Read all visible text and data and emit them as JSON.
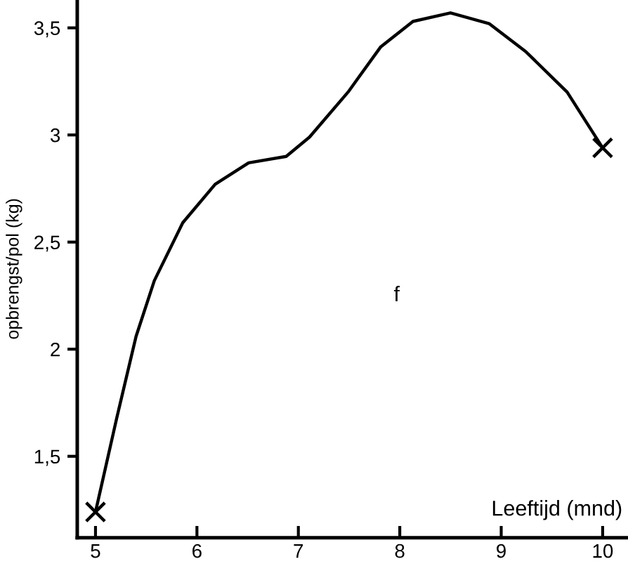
{
  "chart_data": {
    "type": "line",
    "xlabel": "Leeftijd (mnd)",
    "ylabel": "opbrengst/pol (kg)",
    "series": [
      {
        "color": "#000000",
        "marker": "none",
        "x": [
          5,
          5.21,
          5.4,
          5.58,
          5.86,
          6.18,
          6.51,
          6.88,
          7.11,
          7.49,
          7.81,
          8.13,
          8.5,
          8.88,
          9.24,
          9.65,
          10
        ],
        "values": [
          1.24,
          1.68,
          2.06,
          2.32,
          2.59,
          2.77,
          2.87,
          2.9,
          2.99,
          3.2,
          3.41,
          3.53,
          3.57,
          3.52,
          3.39,
          3.2,
          2.94
        ]
      },
      {
        "type": "scatter",
        "color": "#000000",
        "marker": "cross",
        "x": [
          5,
          10
        ],
        "values": [
          1.24,
          2.94
        ]
      }
    ],
    "annotations": [
      "f"
    ],
    "xlim": [
      4.82,
      10.25
    ],
    "ylim": [
      1.12,
      3.63
    ],
    "xticks": [
      5,
      6,
      7,
      8,
      9,
      10
    ],
    "yticks": [
      {
        "value": 1.5,
        "label": "1,5"
      },
      2,
      {
        "value": 2.5,
        "label": "2,5"
      },
      3,
      {
        "value": 3.5,
        "label": "3,5"
      }
    ],
    "grid": false,
    "legend": false
  }
}
